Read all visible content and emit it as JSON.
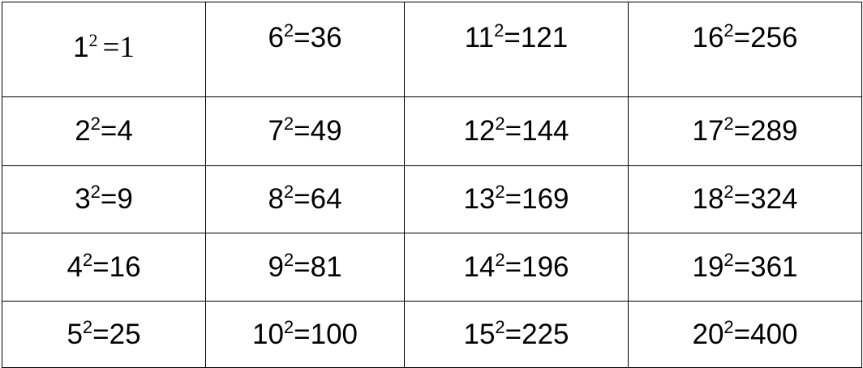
{
  "rows": [
    [
      {
        "base": "1",
        "exp": "2",
        "res": "=1"
      },
      {
        "base": "6",
        "exp": "2",
        "res": "=36"
      },
      {
        "base": "11",
        "exp": "2",
        "res": "=121"
      },
      {
        "base": "16",
        "exp": "2",
        "res": "=256"
      }
    ],
    [
      {
        "base": "2",
        "exp": "2",
        "res": "=4"
      },
      {
        "base": "7",
        "exp": "2",
        "res": "=49"
      },
      {
        "base": "12",
        "exp": "2",
        "res": "=144"
      },
      {
        "base": "17",
        "exp": "2",
        "res": "=289"
      }
    ],
    [
      {
        "base": "3",
        "exp": "2",
        "res": "=9"
      },
      {
        "base": "8",
        "exp": "2",
        "res": "=64"
      },
      {
        "base": "13",
        "exp": "2",
        "res": "=169"
      },
      {
        "base": "18",
        "exp": "2",
        "res": "=324"
      }
    ],
    [
      {
        "base": "4",
        "exp": "2",
        "res": "=16"
      },
      {
        "base": "9",
        "exp": "2",
        "res": "=81"
      },
      {
        "base": "14",
        "exp": "2",
        "res": "=196"
      },
      {
        "base": "19",
        "exp": "2",
        "res": "=361"
      }
    ],
    [
      {
        "base": "5",
        "exp": "2",
        "res": "=25"
      },
      {
        "base": "10",
        "exp": "2",
        "res": "=100"
      },
      {
        "base": "15",
        "exp": "2",
        "res": "=225"
      },
      {
        "base": "20",
        "exp": "2",
        "res": "=400"
      }
    ]
  ]
}
